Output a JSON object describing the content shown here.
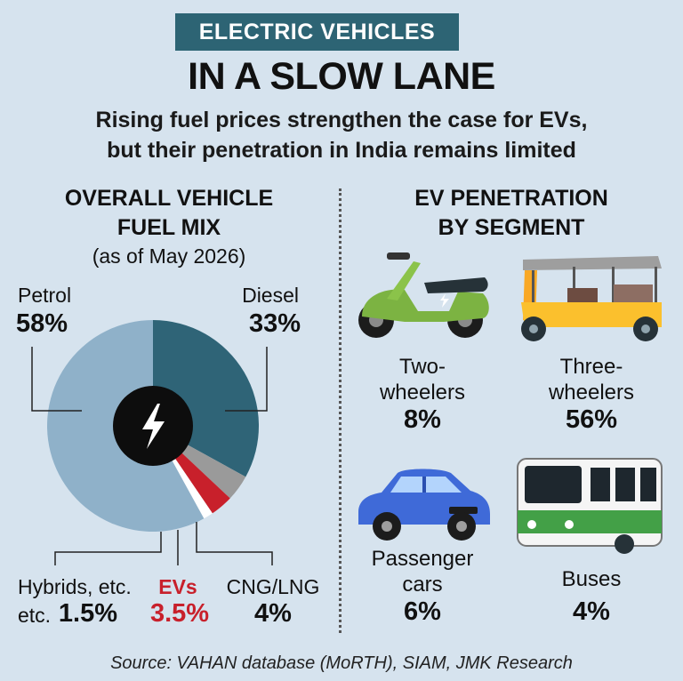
{
  "header": {
    "tag": "ELECTRIC VEHICLES",
    "headline": "IN A SLOW LANE",
    "subtitle_line1": "Rising fuel prices strengthen the case for EVs,",
    "subtitle_line2": "but their penetration in India remains limited"
  },
  "left": {
    "title_line1": "OVERALL VEHICLE",
    "title_line2": "FUEL MIX",
    "as_of": "(as of May 2026)"
  },
  "right": {
    "title_line1": "EV PENETRATION",
    "title_line2": "BY SEGMENT"
  },
  "colors": {
    "background": "#d6e3ee",
    "petrol": "#8fb1c9",
    "diesel": "#2f6477",
    "cng": "#9a9a9a",
    "evs": "#c8202b",
    "hybrids": "#ffffff",
    "accent_red": "#c8202b"
  },
  "source": "Source: VAHAN database (MoRTH), SIAM, JMK Research",
  "chart_data": [
    {
      "type": "pie",
      "title": "OVERALL VEHICLE FUEL MIX",
      "subtitle": "(as of May 2026)",
      "categories": [
        "Petrol",
        "Diesel",
        "CNG/LNG",
        "EVs",
        "Hybrids, etc."
      ],
      "values": [
        58,
        33,
        4,
        3.5,
        1.5
      ],
      "value_labels": [
        "58%",
        "33%",
        "4%",
        "3.5%",
        "1.5%"
      ],
      "colors": [
        "#8fb1c9",
        "#2f6477",
        "#9a9a9a",
        "#c8202b",
        "#ffffff"
      ],
      "center_icon": "lightning-bolt-icon"
    },
    {
      "type": "table",
      "title": "EV PENETRATION BY SEGMENT",
      "segments": [
        {
          "label_line1": "Two-",
          "label_line2": "wheelers",
          "value": 8,
          "value_label": "8%",
          "icon": "scooter-icon"
        },
        {
          "label_line1": "Three-",
          "label_line2": "wheelers",
          "value": 56,
          "value_label": "56%",
          "icon": "auto-rickshaw-icon"
        },
        {
          "label_line1": "Passenger",
          "label_line2": "cars",
          "value": 6,
          "value_label": "6%",
          "icon": "car-icon"
        },
        {
          "label_line1": "",
          "label_line2": "Buses",
          "value": 4,
          "value_label": "4%",
          "icon": "bus-icon"
        }
      ]
    }
  ]
}
